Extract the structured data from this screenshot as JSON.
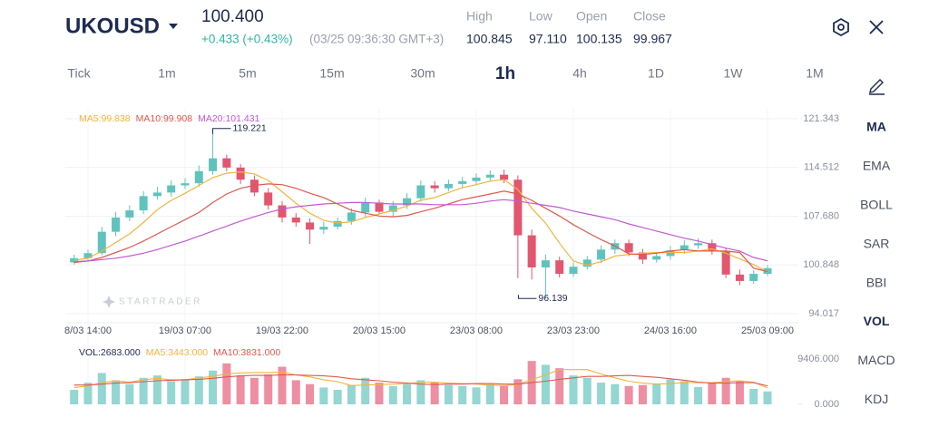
{
  "header": {
    "symbol": "UKOUSD",
    "price": "100.400",
    "change": "+0.433 (+0.43%)",
    "time": "(03/25 09:36:30 GMT+3)",
    "stats": [
      {
        "label": "High",
        "value": "100.845"
      },
      {
        "label": "Low",
        "value": "97.110"
      },
      {
        "label": "Open",
        "value": "100.135"
      },
      {
        "label": "Close",
        "value": "99.967"
      }
    ]
  },
  "timeframes": [
    {
      "label": "Tick"
    },
    {
      "label": "1m"
    },
    {
      "label": "5m"
    },
    {
      "label": "15m"
    },
    {
      "label": "30m"
    },
    {
      "label": "1h",
      "selected": true
    },
    {
      "label": "4h"
    },
    {
      "label": "1D"
    },
    {
      "label": "1W"
    },
    {
      "label": "1M"
    }
  ],
  "indicators": [
    {
      "label": "MA",
      "selected": true
    },
    {
      "label": "EMA"
    },
    {
      "label": "BOLL"
    },
    {
      "label": "SAR"
    },
    {
      "label": "BBI"
    },
    {
      "label": "VOL",
      "selected": true
    },
    {
      "label": "MACD"
    },
    {
      "label": "KDJ"
    }
  ],
  "watermark": "STARTRADER",
  "chart_data": [
    {
      "type": "candlestick",
      "up_color": "#5fc3bd",
      "down_color": "#e2566f",
      "extreme_labels": true,
      "grid": true,
      "categories": [
        null,
        "8/03 14:00",
        null,
        null,
        null,
        null,
        null,
        null,
        "19/03 07:00",
        null,
        null,
        null,
        null,
        null,
        null,
        "19/03 22:00",
        null,
        null,
        null,
        null,
        null,
        null,
        "20/03 15:00",
        null,
        null,
        null,
        null,
        null,
        null,
        "23/03 08:00",
        null,
        null,
        null,
        null,
        null,
        null,
        "23/03 23:00",
        null,
        null,
        null,
        null,
        null,
        null,
        "24/03 16:00",
        null,
        null,
        null,
        null,
        null,
        null,
        "25/03 09:00"
      ],
      "open": [
        101.2,
        101.8,
        102.5,
        105.5,
        107.5,
        108.5,
        110.5,
        111,
        112,
        112.3,
        114,
        115.8,
        114.5,
        112.8,
        111,
        109.2,
        107.5,
        106.8,
        105.8,
        106.2,
        107,
        108.2,
        109.6,
        108.3,
        109.2,
        110.2,
        112,
        111.6,
        112.2,
        112.6,
        113.1,
        113.5,
        112.8,
        105,
        100.5,
        101.5,
        99.6,
        100.6,
        101.6,
        103,
        103.9,
        102.6,
        101.6,
        102.1,
        102.9,
        103.6,
        103.9,
        102.8,
        99.5,
        98.6,
        99.6
      ],
      "high": [
        102.3,
        103,
        106.2,
        108.3,
        109.2,
        111.2,
        111.8,
        112.7,
        113,
        114.8,
        119.221,
        116.3,
        115,
        113.4,
        111.6,
        109.8,
        108.1,
        107.4,
        106.9,
        107.5,
        108.8,
        110.3,
        110,
        109.8,
        110.9,
        112.7,
        112.6,
        112.8,
        113.2,
        113.7,
        114.1,
        114.2,
        113.4,
        105.8,
        102.3,
        102,
        101.2,
        102.1,
        103.6,
        104.4,
        104.4,
        103.1,
        102.6,
        103.5,
        104.3,
        104.6,
        104.4,
        103.3,
        100.2,
        100.1,
        100.845
      ],
      "low": [
        100.9,
        101.4,
        102.2,
        104.9,
        107,
        108,
        110,
        110.4,
        111.5,
        111.8,
        113.5,
        114,
        112.2,
        110.5,
        108.6,
        106.8,
        106.2,
        103.8,
        105.2,
        105.8,
        106.5,
        107.6,
        108,
        107.7,
        108.7,
        109.7,
        111,
        111.2,
        111.7,
        112.1,
        112.6,
        112.3,
        99,
        98.8,
        96.139,
        99.1,
        99.2,
        100.2,
        101.1,
        102.4,
        102.1,
        101,
        101.2,
        101.6,
        102.4,
        103.1,
        102.3,
        99,
        98,
        98.2,
        99.3
      ],
      "close": [
        101.8,
        102.5,
        105.5,
        107.5,
        108.5,
        110.5,
        111,
        112,
        112.3,
        114,
        115.8,
        114.5,
        112.8,
        111,
        109.2,
        107.5,
        106.8,
        105.8,
        106.2,
        107,
        108.2,
        109.6,
        108.3,
        109.2,
        110.2,
        112,
        111.6,
        112.2,
        112.6,
        113.1,
        113.5,
        112.8,
        105,
        100.5,
        101.5,
        99.6,
        100.6,
        101.6,
        103,
        103.9,
        102.6,
        101.6,
        102.1,
        102.9,
        103.6,
        103.9,
        102.8,
        99.5,
        98.6,
        99.6,
        100.4
      ],
      "series": [
        {
          "name": "MA5:99.838",
          "color": "#f2b43c",
          "values": [
            101.5,
            101.8,
            102.8,
            104,
            105.2,
            106.8,
            108.6,
            109.9,
            110.9,
            112,
            113.1,
            113.7,
            113.9,
            113.6,
            112.7,
            111.1,
            109.5,
            108.1,
            107.1,
            106.7,
            106.9,
            107.5,
            108,
            108.5,
            109.1,
            109.9,
            110.3,
            111,
            111.7,
            112.1,
            112.6,
            112.8,
            111.4,
            108.8,
            106.7,
            103.9,
            101.4,
            100.8,
            101.3,
            102.1,
            102.3,
            102.5,
            102.6,
            102.6,
            102.6,
            102.8,
            103.1,
            102.5,
            101.7,
            100.9,
            99.838
          ]
        },
        {
          "name": "MA10:99.908",
          "color": "#dd5a4e",
          "values": [
            101.2,
            101.4,
            101.9,
            102.6,
            103.3,
            104.2,
            105.2,
            106.2,
            107.2,
            108.2,
            109.6,
            110.8,
            111.6,
            112,
            112.2,
            112.1,
            111.6,
            110.9,
            110.3,
            109.4,
            108.5,
            108.1,
            107.7,
            107.6,
            107.8,
            108.3,
            108.8,
            109.4,
            110,
            110.4,
            110.8,
            111.2,
            110.8,
            109.9,
            108.8,
            107.7,
            106.5,
            105.4,
            104.4,
            103.5,
            102.4,
            102.3,
            102.5,
            102.8,
            103,
            102.8,
            102.8,
            102.8,
            102.6,
            100.4,
            99.908
          ]
        },
        {
          "name": "MA20:101.431",
          "color": "#c25ad0",
          "values": [
            101.3,
            101.4,
            101.6,
            101.8,
            102.1,
            102.5,
            103,
            103.6,
            104.2,
            104.9,
            105.6,
            106.3,
            107,
            107.6,
            108.2,
            108.7,
            109,
            109.2,
            109.4,
            109.5,
            109.6,
            109.6,
            109.5,
            109.4,
            109.4,
            109.4,
            109.3,
            109.3,
            109.3,
            109.5,
            109.8,
            110,
            109.8,
            109.5,
            109.2,
            108.9,
            108.4,
            108,
            107.6,
            107.2,
            106.6,
            106.1,
            105.6,
            105.1,
            104.6,
            104.2,
            103.7,
            103.2,
            102.8,
            101.9,
            101.431
          ]
        }
      ],
      "ylim": [
        94.017,
        121.343
      ],
      "yticks": [
        121.343,
        114.512,
        {
          "value": 107.68,
          "label": "107.680"
        },
        100.848,
        94.017
      ]
    },
    {
      "type": "bar",
      "up_color": "#93d6d2",
      "down_color": "#ee8ea2",
      "series": [
        {
          "name": "VOL:2683.000",
          "color": "#1d2b50",
          "values": [
            3000,
            4500,
            6500,
            5000,
            4200,
            5500,
            6000,
            4800,
            5200,
            5800,
            7000,
            8500,
            6000,
            5500,
            6200,
            7800,
            5000,
            4200,
            3500,
            3000,
            4000,
            5500,
            4500,
            3800,
            4200,
            5000,
            4500,
            4000,
            3800,
            3500,
            4200,
            3800,
            5200,
            9000,
            8200,
            7500,
            6000,
            5500,
            4500,
            4200,
            3800,
            4000,
            4300,
            5200,
            4800,
            3600,
            4500,
            5500,
            4800,
            3200,
            2683
          ]
        },
        {
          "name": "MA5:3443.000",
          "color": "#f2b43c",
          "values": [
            3500,
            3800,
            4500,
            4900,
            4600,
            5100,
            5400,
            5100,
            5100,
            5500,
            5800,
            6300,
            6500,
            6600,
            6600,
            6700,
            6100,
            5700,
            5100,
            4700,
            3900,
            4000,
            4100,
            4200,
            4300,
            4600,
            4600,
            4400,
            4300,
            4200,
            4000,
            3900,
            4100,
            5100,
            6100,
            7200,
            7200,
            7200,
            6300,
            5500,
            4800,
            4400,
            4200,
            4300,
            4500,
            4500,
            4500,
            4700,
            4900,
            4600,
            3443
          ]
        },
        {
          "name": "MA10:3831.000",
          "color": "#dd5a4e",
          "values": [
            4000,
            4000,
            4200,
            4400,
            4500,
            4700,
            4900,
            5000,
            5100,
            5200,
            5400,
            5700,
            5900,
            6000,
            6000,
            6100,
            6100,
            6000,
            5900,
            5700,
            5300,
            5100,
            4900,
            4600,
            4400,
            4200,
            4100,
            4200,
            4200,
            4300,
            4300,
            4200,
            4200,
            4500,
            4800,
            5200,
            5500,
            5800,
            5800,
            5900,
            6000,
            5800,
            5600,
            5300,
            5000,
            4600,
            4400,
            4400,
            4500,
            4500,
            3831
          ]
        }
      ],
      "ylim": [
        0,
        9406
      ],
      "yticks": [
        {
          "value": 9406,
          "label": "9406.000"
        },
        {
          "value": 0,
          "label": "0.000"
        }
      ]
    }
  ]
}
